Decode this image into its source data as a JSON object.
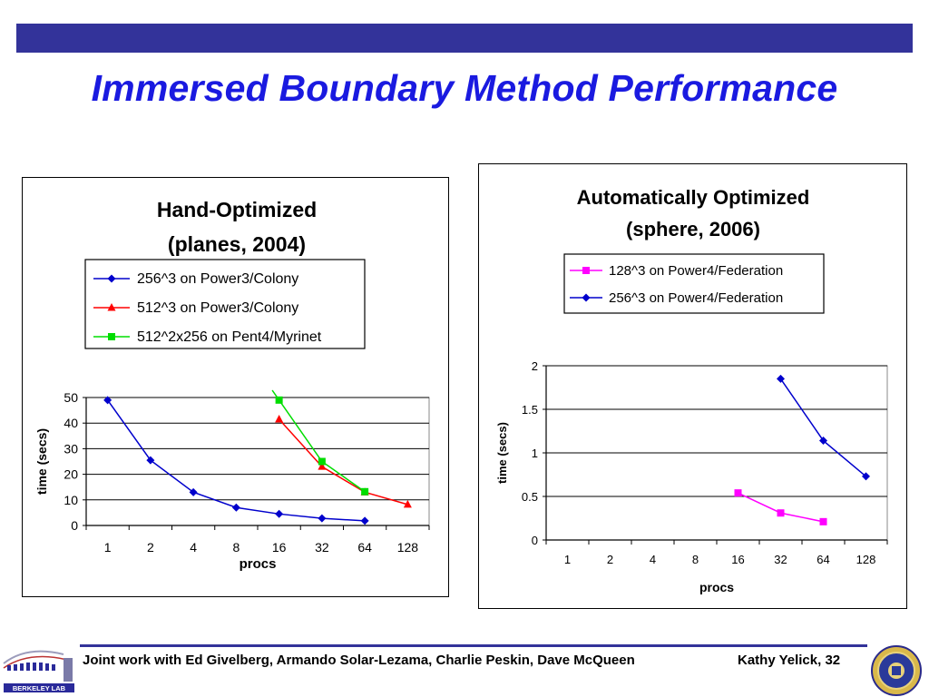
{
  "slide": {
    "title": "Immersed Boundary Method Performance",
    "footer_credit": "Joint work with Ed Givelberg, Armando Solar-Lezama, Charlie Peskin, Dave McQueen",
    "footer_author": "Kathy Yelick,  32",
    "logo_left_text": "BERKELEY LAB",
    "accent_color": "#33339a",
    "title_color": "#1a1ae0"
  },
  "chart_data": [
    {
      "type": "line",
      "title": [
        "Hand-Optimized",
        "(planes, 2004)"
      ],
      "xlabel": "procs",
      "ylabel": "time (secs)",
      "categories": [
        "1",
        "2",
        "4",
        "8",
        "16",
        "32",
        "64",
        "128"
      ],
      "ylim": [
        0,
        50
      ],
      "yticks": [
        0,
        10,
        20,
        30,
        40,
        50
      ],
      "grid": "horizontal",
      "legend_position": "top",
      "series": [
        {
          "name": "256^3 on Power3/Colony",
          "color": "#0000cc",
          "marker": "diamond",
          "values": [
            49,
            25.5,
            13,
            7,
            4.5,
            2.8,
            1.8,
            null
          ]
        },
        {
          "name": "512^3 on Power3/Colony",
          "color": "#ff0000",
          "marker": "triangle",
          "values": [
            null,
            null,
            null,
            null,
            41.5,
            23,
            13,
            8.2
          ]
        },
        {
          "name": "512^2x256 on Pent4/Myrinet",
          "color": "#00dd00",
          "marker": "square",
          "values": [
            null,
            null,
            null,
            null,
            49,
            25,
            13.2,
            null
          ],
          "line_extends_above": true
        }
      ]
    },
    {
      "type": "line",
      "title": [
        "Automatically Optimized",
        "(sphere, 2006)"
      ],
      "xlabel": "procs",
      "ylabel": "time (secs)",
      "categories": [
        "1",
        "2",
        "4",
        "8",
        "16",
        "32",
        "64",
        "128"
      ],
      "ylim": [
        0,
        2
      ],
      "yticks": [
        "0",
        "0.5",
        "1",
        "1.5",
        "2"
      ],
      "grid": "horizontal",
      "legend_position": "top",
      "series": [
        {
          "name": "128^3 on Power4/Federation",
          "color": "#ff00ff",
          "marker": "square",
          "values": [
            null,
            null,
            null,
            null,
            0.54,
            0.31,
            0.21,
            null
          ]
        },
        {
          "name": "256^3 on Power4/Federation",
          "color": "#0000cc",
          "marker": "diamond",
          "values": [
            null,
            null,
            null,
            null,
            null,
            1.85,
            1.14,
            0.73
          ]
        }
      ]
    }
  ]
}
